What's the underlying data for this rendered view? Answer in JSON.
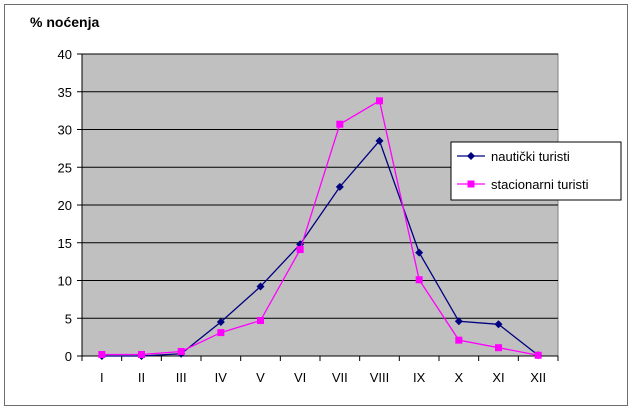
{
  "chart_data": {
    "type": "line",
    "ylabel": "% noćenja",
    "categories": [
      "I",
      "II",
      "III",
      "IV",
      "V",
      "VI",
      "VII",
      "VIII",
      "IX",
      "X",
      "XI",
      "XII"
    ],
    "ylim": [
      0,
      40
    ],
    "yticks": [
      0,
      5,
      10,
      15,
      20,
      25,
      30,
      35,
      40
    ],
    "grid": true,
    "legend_position": "right",
    "plot_background": "#c0c0c0",
    "series": [
      {
        "name": "nautički turisti",
        "color": "#000080",
        "marker": "diamond",
        "values": [
          0,
          0,
          0.3,
          4.5,
          9.2,
          14.8,
          22.4,
          28.5,
          13.7,
          4.6,
          4.2,
          0.1
        ]
      },
      {
        "name": "stacionarni turisti",
        "color": "#ff00ff",
        "marker": "square",
        "values": [
          0.2,
          0.2,
          0.6,
          3.1,
          4.7,
          14.1,
          30.7,
          33.8,
          10.1,
          2.1,
          1.1,
          0.1
        ]
      }
    ]
  }
}
